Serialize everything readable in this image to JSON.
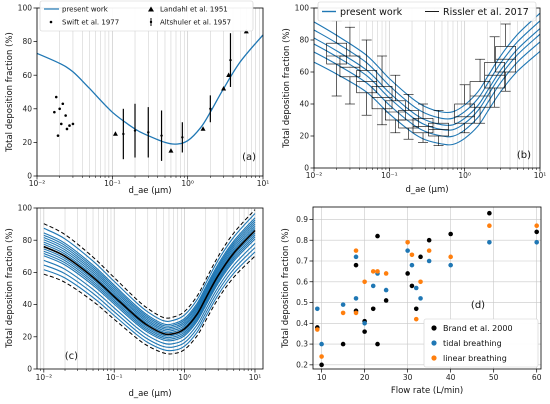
{
  "colors": {
    "model": "#1f77b4",
    "black": "#000000",
    "tidal": "#1f77b4",
    "linear": "#ff7f0e",
    "grid": "#c8c8c8"
  },
  "chart_data": [
    {
      "panel": "(a)",
      "type": "line",
      "xscale": "log",
      "xlim": [
        0.01,
        10
      ],
      "ylim": [
        0,
        100
      ],
      "xticks": [
        "10⁻²",
        "10⁻¹",
        "10⁰",
        "10¹"
      ],
      "yticks": [
        "0",
        "20",
        "40",
        "60",
        "80",
        "100"
      ],
      "xlabel": "d_ae (μm)",
      "ylabel": "Total deposition fraction (%)",
      "legend": [
        "present work",
        "Swift et al. 1977",
        "Landahl et al. 1951",
        "Altshuler et al. 1957"
      ],
      "grid": "vertical",
      "series": [
        {
          "name": "present work",
          "style": "line",
          "x": [
            0.01,
            0.02,
            0.03,
            0.05,
            0.1,
            0.2,
            0.3,
            0.5,
            0.7,
            1.0,
            1.5,
            2.0,
            3.0,
            5.0,
            10.0
          ],
          "y": [
            73,
            67,
            62,
            52,
            38,
            28,
            24,
            20,
            19,
            21,
            29,
            38,
            52,
            68,
            84
          ]
        },
        {
          "name": "Swift et al. 1977",
          "style": "dot",
          "x": [
            0.017,
            0.018,
            0.019,
            0.02,
            0.021,
            0.022,
            0.024,
            0.025,
            0.027,
            0.03
          ],
          "y": [
            38,
            47,
            24,
            40,
            31,
            43,
            36,
            28,
            30,
            31
          ]
        },
        {
          "name": "Landahl et al. 1951",
          "style": "triangle",
          "x": [
            0.11,
            0.6,
            1.6,
            3.0,
            3.5,
            6.0
          ],
          "y": [
            25,
            15,
            28,
            52,
            60,
            86
          ]
        },
        {
          "name": "Altshuler et al. 1957",
          "style": "errorbar",
          "x": [
            0.14,
            0.2,
            0.3,
            0.45,
            0.85,
            2.0,
            3.7
          ],
          "y": [
            25,
            27,
            26,
            24,
            23,
            40,
            69
          ],
          "lo": [
            10,
            11,
            11,
            9,
            14,
            32,
            53
          ],
          "hi": [
            40,
            43,
            41,
            39,
            32,
            48,
            85
          ]
        }
      ]
    },
    {
      "panel": "(b)",
      "type": "line",
      "xscale": "log",
      "xlim": [
        0.01,
        10
      ],
      "ylim": [
        0,
        100
      ],
      "xticks": [
        "10⁻²",
        "10⁻¹",
        "10⁰",
        "10¹"
      ],
      "yticks": [
        "0",
        "20",
        "40",
        "60",
        "80",
        "100"
      ],
      "xlabel": "d_ae (μm)",
      "ylabel": "Total deposition fraction (%)",
      "legend": [
        "present work",
        "Rissler et al. 2017"
      ],
      "grid": "vertical",
      "curves": {
        "x": [
          0.01,
          0.02,
          0.05,
          0.1,
          0.2,
          0.3,
          0.5,
          0.7,
          1.0,
          1.5,
          2.0,
          3.0,
          5.0,
          10.0
        ],
        "base": [
          80,
          72,
          60,
          46,
          34,
          29,
          26,
          26,
          30,
          38,
          47,
          60,
          73,
          86
        ],
        "offsets": [
          -11,
          -6,
          -2,
          1,
          5,
          9
        ]
      },
      "boxes": [
        {
          "x": 0.02,
          "min": 45,
          "q1": 65,
          "med": 70,
          "q3": 78,
          "max": 92
        },
        {
          "x": 0.03,
          "min": 40,
          "q1": 57,
          "med": 63,
          "q3": 70,
          "max": 88
        },
        {
          "x": 0.05,
          "min": 33,
          "q1": 47,
          "med": 54,
          "q3": 61,
          "max": 80
        },
        {
          "x": 0.08,
          "min": 27,
          "q1": 37,
          "med": 44,
          "q3": 51,
          "max": 70
        },
        {
          "x": 0.12,
          "min": 22,
          "q1": 30,
          "med": 35,
          "q3": 42,
          "max": 58
        },
        {
          "x": 0.18,
          "min": 18,
          "q1": 25,
          "med": 30,
          "q3": 36,
          "max": 46
        },
        {
          "x": 0.28,
          "min": 16,
          "q1": 22,
          "med": 26,
          "q3": 31,
          "max": 40
        },
        {
          "x": 0.45,
          "min": 14,
          "q1": 20,
          "med": 24,
          "q3": 28,
          "max": 36
        },
        {
          "x": 1.0,
          "min": 22,
          "q1": 28,
          "med": 32,
          "q3": 40,
          "max": 52
        },
        {
          "x": 1.6,
          "min": 28,
          "q1": 38,
          "med": 45,
          "q3": 54,
          "max": 68
        },
        {
          "x": 2.5,
          "min": 38,
          "q1": 50,
          "med": 58,
          "q3": 66,
          "max": 82
        },
        {
          "x": 3.5,
          "min": 48,
          "q1": 60,
          "med": 68,
          "q3": 76,
          "max": 90
        }
      ]
    },
    {
      "panel": "(c)",
      "type": "line",
      "xscale": "log",
      "xlim": [
        0.01,
        10
      ],
      "ylim": [
        0,
        100
      ],
      "xticks": [
        "10⁻²",
        "10⁻¹",
        "10⁰",
        "10¹"
      ],
      "yticks": [
        "0",
        "20",
        "40",
        "60",
        "80",
        "100"
      ],
      "xlabel": "d_ae (μm)",
      "ylabel": "Total deposition fraction (%)",
      "grid": "vertical",
      "curves": {
        "x": [
          0.01,
          0.02,
          0.05,
          0.1,
          0.2,
          0.3,
          0.5,
          0.7,
          1.0,
          1.5,
          2.0,
          3.0,
          5.0,
          10.0
        ],
        "base": [
          76,
          70,
          57,
          45,
          33,
          27,
          22,
          22,
          25,
          34,
          44,
          58,
          72,
          86
        ],
        "offsets": [
          -10,
          -8,
          -6,
          -4,
          -3,
          -2,
          -1,
          0,
          1,
          2,
          3,
          4,
          5,
          6,
          8
        ],
        "dashed_offsets": [
          -12,
          10
        ]
      }
    },
    {
      "panel": "(d)",
      "type": "scatter",
      "xlim": [
        8,
        61
      ],
      "ylim": [
        0.18,
        0.96
      ],
      "xticks": [
        "10",
        "20",
        "30",
        "40",
        "50",
        "60"
      ],
      "yticks": [
        "0.2",
        "0.3",
        "0.4",
        "0.5",
        "0.6",
        "0.7",
        "0.8",
        "0.9"
      ],
      "xlabel": "Flow rate (L/min)",
      "ylabel": "Total deposition fraction (%)",
      "legend": [
        "Brand et al. 2000",
        "tidal breathing",
        "linear breathing"
      ],
      "grid": "both",
      "series": [
        {
          "name": "Brand et al. 2000",
          "x": [
            9,
            10,
            15,
            18,
            18,
            20,
            20,
            22,
            23,
            23,
            25,
            30,
            31,
            32,
            33,
            35,
            40,
            49,
            60
          ],
          "y": [
            0.38,
            0.2,
            0.3,
            0.68,
            0.46,
            0.41,
            0.36,
            0.47,
            0.82,
            0.3,
            0.51,
            0.64,
            0.58,
            0.47,
            0.72,
            0.8,
            0.83,
            0.93,
            0.84
          ]
        },
        {
          "name": "tidal breathing",
          "x": [
            9,
            10,
            15,
            18,
            18,
            20,
            22,
            23,
            25,
            30,
            31,
            32,
            33,
            35,
            40,
            49,
            60
          ],
          "y": [
            0.47,
            0.3,
            0.49,
            0.72,
            0.52,
            0.4,
            0.58,
            0.64,
            0.56,
            0.75,
            0.68,
            0.57,
            0.52,
            0.7,
            0.68,
            0.79,
            0.79
          ]
        },
        {
          "name": "linear breathing",
          "x": [
            9,
            10,
            15,
            18,
            18,
            20,
            22,
            23,
            25,
            30,
            31,
            32,
            33,
            35,
            40,
            49,
            60
          ],
          "y": [
            0.37,
            0.24,
            0.45,
            0.75,
            0.45,
            0.6,
            0.65,
            0.65,
            0.64,
            0.79,
            0.73,
            0.42,
            0.6,
            0.75,
            0.72,
            0.87,
            0.87
          ]
        }
      ]
    }
  ]
}
